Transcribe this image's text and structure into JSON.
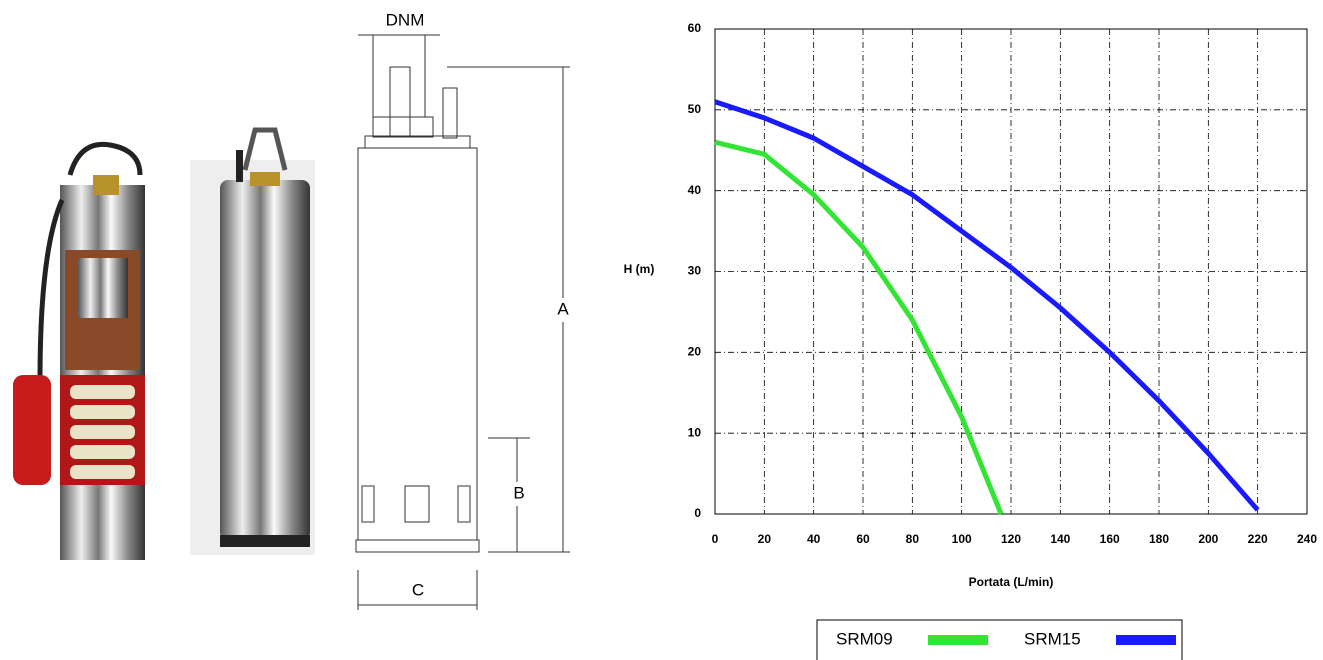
{
  "drawing_labels": {
    "dnm": "DNM",
    "a": "A",
    "b": "B",
    "c": "C"
  },
  "chart_data": {
    "type": "line",
    "x_label": "Portata (L/min)",
    "y_label": "H (m)",
    "xlim": [
      0,
      240
    ],
    "xticks": [
      0,
      20,
      40,
      60,
      80,
      100,
      120,
      140,
      160,
      180,
      200,
      220,
      240
    ],
    "ylim": [
      0,
      60
    ],
    "yticks": [
      0,
      10,
      20,
      30,
      40,
      50,
      60
    ],
    "grid": true,
    "legend": "bottom",
    "series": [
      {
        "name": "SRM09",
        "color": "#33e533",
        "x": [
          0,
          20,
          40,
          60,
          80,
          100,
          116
        ],
        "values": [
          46,
          44.5,
          39.5,
          33,
          24,
          12,
          0
        ]
      },
      {
        "name": "SRM15",
        "color": "#1a1aff",
        "x": [
          0,
          20,
          40,
          60,
          80,
          100,
          120,
          140,
          160,
          180,
          200,
          220
        ],
        "values": [
          51,
          49,
          46.5,
          43,
          39.5,
          35,
          30.5,
          25.5,
          20,
          14,
          7.5,
          0.5
        ]
      }
    ]
  }
}
